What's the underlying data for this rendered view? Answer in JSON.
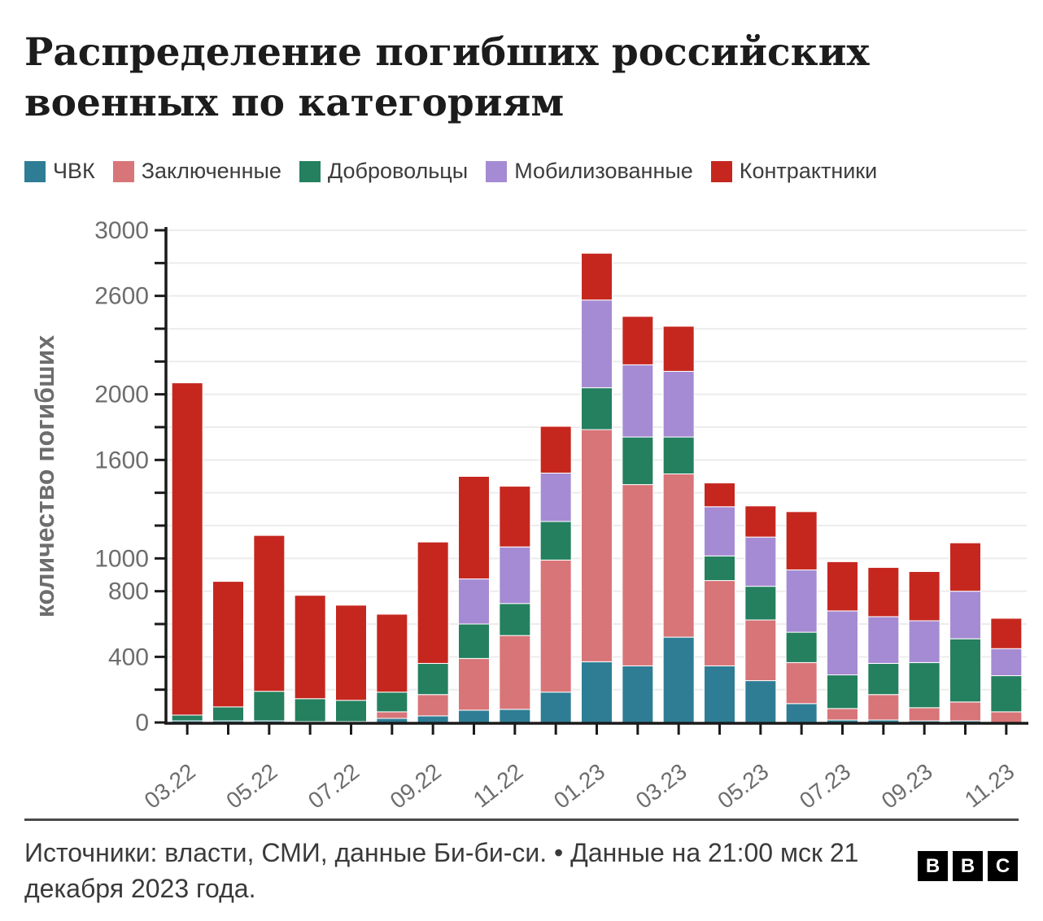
{
  "header": {
    "title": "Распределение погибших российских военных по категориям"
  },
  "y_axis": {
    "title": "количество погибших",
    "labeled_ticks": [
      0,
      400,
      800,
      1000,
      1600,
      2000,
      2600,
      3000
    ],
    "tick_step": 200,
    "max": 3000
  },
  "x_axis": {
    "labeled_ticks": [
      "03.22",
      "05.22",
      "07.22",
      "09.22",
      "11.22",
      "01.23",
      "03.23",
      "05.23",
      "07.23",
      "09.23",
      "11.23"
    ]
  },
  "chart_data": {
    "type": "bar",
    "stacked": true,
    "title": "Распределение погибших российских военных по категориям",
    "ylabel": "количество погибших",
    "ylim": [
      0,
      3000
    ],
    "grid": true,
    "legend_position": "top",
    "categories": [
      "03.22",
      "04.22",
      "05.22",
      "06.22",
      "07.22",
      "08.22",
      "09.22",
      "10.22",
      "11.22",
      "12.22",
      "01.23",
      "02.23",
      "03.23",
      "04.23",
      "05.23",
      "06.23",
      "07.23",
      "08.23",
      "09.23",
      "10.23",
      "11.23"
    ],
    "series": [
      {
        "name": "ЧВК",
        "color": "#2e7d95",
        "values": [
          10,
          10,
          10,
          5,
          5,
          25,
          40,
          75,
          80,
          185,
          370,
          345,
          520,
          345,
          255,
          115,
          15,
          15,
          10,
          10,
          0
        ]
      },
      {
        "name": "Заключенные",
        "color": "#d87578",
        "values": [
          0,
          0,
          0,
          0,
          0,
          40,
          130,
          315,
          450,
          805,
          1415,
          1105,
          995,
          520,
          370,
          250,
          70,
          155,
          80,
          115,
          65
        ]
      },
      {
        "name": "Добровольцы",
        "color": "#24805f",
        "values": [
          35,
          85,
          180,
          140,
          130,
          120,
          190,
          210,
          195,
          235,
          255,
          290,
          225,
          150,
          205,
          185,
          205,
          190,
          275,
          385,
          220
        ]
      },
      {
        "name": "Мобилизованные",
        "color": "#a58bd3",
        "values": [
          0,
          0,
          0,
          0,
          0,
          0,
          0,
          275,
          345,
          295,
          535,
          440,
          400,
          300,
          300,
          380,
          390,
          285,
          255,
          290,
          165
        ]
      },
      {
        "name": "Контрактники",
        "color": "#c5271f",
        "values": [
          2025,
          765,
          950,
          630,
          580,
          475,
          740,
          625,
          370,
          285,
          285,
          295,
          275,
          145,
          190,
          355,
          300,
          300,
          300,
          295,
          185
        ]
      }
    ]
  },
  "footer": {
    "source": "Источники: власти, СМИ, данные Би-би-си. • Данные на 21:00 мск 21 декабря 2023 года.",
    "logo_letters": [
      "B",
      "B",
      "C"
    ]
  }
}
